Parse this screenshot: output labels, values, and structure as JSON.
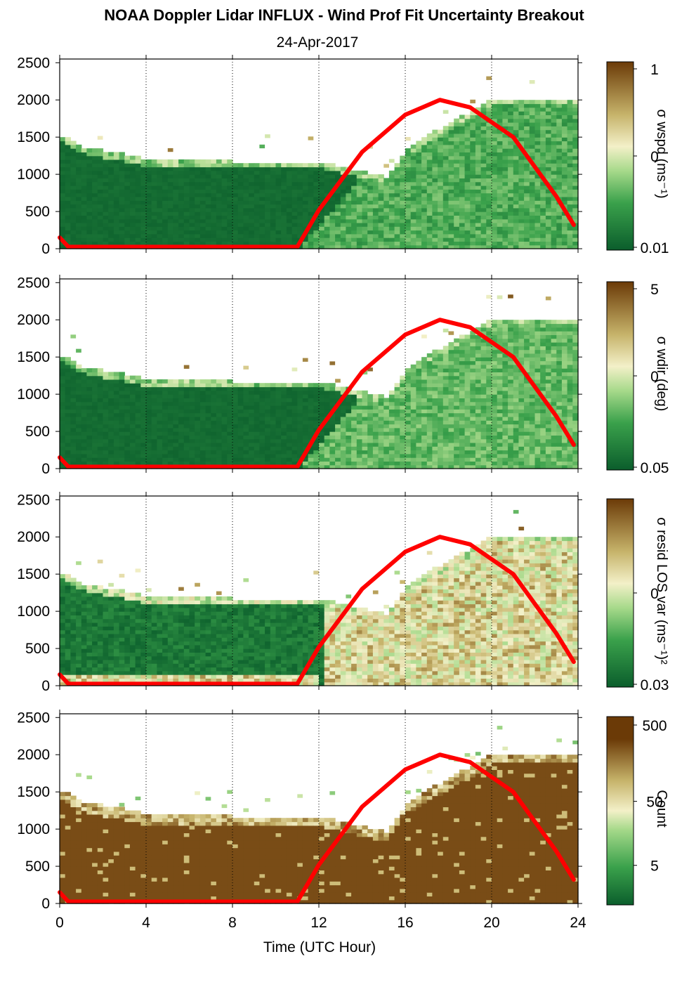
{
  "figure": {
    "title": "NOAA Doppler Lidar INFLUX - Wind Prof Fit Uncertainty Breakout",
    "date": "24-Apr-2017",
    "xlabel": "Time (UTC Hour)"
  },
  "colors": {
    "background": "#ffffff",
    "frame": "#000000",
    "sun_curve": "#ff0000",
    "dark_green": "#0b5e2c",
    "mid_green": "#3aa14b",
    "light_green": "#a6d98a",
    "cream": "#f3f0c8",
    "tan": "#c6b36a",
    "brown": "#6b3a07"
  },
  "chart_data": [
    {
      "type": "heatmap",
      "name": "sigma-wspd",
      "title": "",
      "xlabel": "",
      "ylabel": "",
      "xlim": [
        0,
        24
      ],
      "ylim": [
        0,
        2550
      ],
      "x_ticks": [
        0,
        4,
        8,
        12,
        16,
        20,
        24
      ],
      "y_ticks": [
        "0",
        "500",
        "1000",
        "1500",
        "2000",
        "2500"
      ],
      "grid": "vertical dotted at 4-hour intervals",
      "colorbar": {
        "label": "σ wspd (ms⁻¹)",
        "ticks": [
          "1",
          "0",
          "0.01"
        ],
        "scale": "log"
      },
      "profile_top_m": [
        [
          0,
          1500
        ],
        [
          1,
          1350
        ],
        [
          4,
          1180
        ],
        [
          8,
          1150
        ],
        [
          12,
          1150
        ],
        [
          15,
          950
        ],
        [
          16,
          1350
        ],
        [
          20,
          2000
        ],
        [
          23.8,
          2000
        ]
      ],
      "sun_curve": {
        "label": "",
        "x": [
          0,
          0.4,
          11.0,
          12.0,
          14.0,
          16.0,
          17.6,
          19.0,
          21.0,
          23.0,
          23.8
        ],
        "y": [
          150,
          25,
          25,
          520,
          1300,
          1800,
          2000,
          1900,
          1500,
          700,
          320
        ]
      }
    },
    {
      "type": "heatmap",
      "name": "sigma-wdir",
      "title": "",
      "xlabel": "",
      "ylabel": "",
      "xlim": [
        0,
        24
      ],
      "ylim": [
        0,
        2550
      ],
      "x_ticks": [
        0,
        4,
        8,
        12,
        16,
        20,
        24
      ],
      "y_ticks": [
        "0",
        "500",
        "1000",
        "1500",
        "2000",
        "2500"
      ],
      "grid": "vertical dotted at 4-hour intervals",
      "colorbar": {
        "label": "σ wdir (deg)",
        "ticks": [
          "5",
          "0",
          "0.05"
        ],
        "scale": "log"
      },
      "profile_top_m": [
        [
          0,
          1500
        ],
        [
          1,
          1350
        ],
        [
          4,
          1180
        ],
        [
          8,
          1150
        ],
        [
          12,
          1150
        ],
        [
          15,
          950
        ],
        [
          16,
          1350
        ],
        [
          20,
          2000
        ],
        [
          23.8,
          2000
        ]
      ],
      "sun_curve": {
        "label": "",
        "x": [
          0,
          0.4,
          11.0,
          12.0,
          14.0,
          16.0,
          17.6,
          19.0,
          21.0,
          23.0,
          23.8
        ],
        "y": [
          150,
          25,
          25,
          520,
          1300,
          1800,
          2000,
          1900,
          1500,
          700,
          320
        ]
      }
    },
    {
      "type": "heatmap",
      "name": "sigma-resid-los-var",
      "title": "",
      "xlabel": "",
      "ylabel": "",
      "xlim": [
        0,
        24
      ],
      "ylim": [
        0,
        2550
      ],
      "x_ticks": [
        0,
        4,
        8,
        12,
        16,
        20,
        24
      ],
      "y_ticks": [
        "0",
        "500",
        "1000",
        "1500",
        "2000",
        "2500"
      ],
      "grid": "vertical dotted at 4-hour intervals",
      "colorbar": {
        "label": "σ resid LOS var (ms⁻¹)²",
        "ticks": [
          "",
          "0",
          "0.03"
        ],
        "scale": "log"
      },
      "profile_top_m": [
        [
          0,
          1500
        ],
        [
          1,
          1350
        ],
        [
          4,
          1180
        ],
        [
          8,
          1150
        ],
        [
          12,
          1150
        ],
        [
          15,
          950
        ],
        [
          16,
          1350
        ],
        [
          20,
          2000
        ],
        [
          23.8,
          2000
        ]
      ],
      "sun_curve": {
        "label": "",
        "x": [
          0,
          0.4,
          11.0,
          12.0,
          14.0,
          16.0,
          17.6,
          19.0,
          21.0,
          23.0,
          23.8
        ],
        "y": [
          150,
          25,
          25,
          520,
          1300,
          1800,
          2000,
          1900,
          1500,
          700,
          320
        ]
      }
    },
    {
      "type": "heatmap",
      "name": "count",
      "title": "",
      "xlabel": "Time (UTC Hour)",
      "ylabel": "",
      "xlim": [
        0,
        24
      ],
      "ylim": [
        0,
        2550
      ],
      "x_ticks": [
        0,
        4,
        8,
        12,
        16,
        20,
        24
      ],
      "y_ticks": [
        "0",
        "500",
        "1000",
        "1500",
        "2000",
        "2500"
      ],
      "grid": "vertical dotted at 4-hour intervals",
      "colorbar": {
        "label": "Count",
        "ticks": [
          "500",
          "50",
          "5"
        ],
        "scale": "log"
      },
      "profile_top_m": [
        [
          0,
          1500
        ],
        [
          1,
          1350
        ],
        [
          4,
          1180
        ],
        [
          8,
          1150
        ],
        [
          12,
          1150
        ],
        [
          15,
          950
        ],
        [
          16,
          1350
        ],
        [
          20,
          2000
        ],
        [
          23.8,
          2000
        ]
      ],
      "sun_curve": {
        "label": "",
        "x": [
          0,
          0.4,
          11.0,
          12.0,
          14.0,
          16.0,
          17.6,
          19.0,
          21.0,
          23.0,
          23.8
        ],
        "y": [
          150,
          25,
          25,
          520,
          1300,
          1800,
          2000,
          1900,
          1500,
          700,
          320
        ]
      }
    }
  ]
}
